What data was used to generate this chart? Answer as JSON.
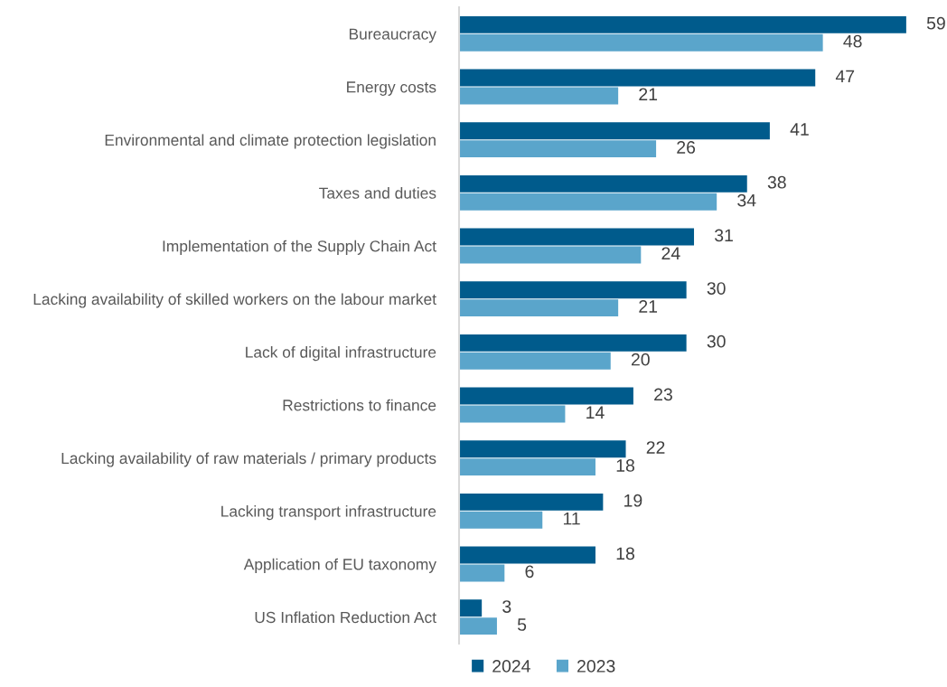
{
  "chart_data": {
    "type": "bar",
    "orientation": "horizontal",
    "data_labels": true,
    "legend": "bottom",
    "grid": false,
    "categories": [
      "Bureaucracy",
      "Energy costs",
      "Environmental and climate protection legislation",
      "Taxes and duties",
      "Implementation of the Supply Chain Act",
      "Lacking availability of skilled workers on the labour market",
      "Lack of digital infrastructure",
      "Restrictions to finance",
      "Lacking availability of raw materials / primary products",
      "Lacking transport infrastructure",
      "Application of EU taxonomy",
      "US Inflation Reduction Act"
    ],
    "series": [
      {
        "name": "2024",
        "color": "#005b8c",
        "values": [
          59,
          47,
          41,
          38,
          31,
          30,
          30,
          23,
          22,
          19,
          18,
          3
        ]
      },
      {
        "name": "2023",
        "color": "#5aa5cb",
        "values": [
          48,
          21,
          26,
          34,
          24,
          21,
          20,
          14,
          18,
          11,
          6,
          5
        ]
      }
    ]
  }
}
